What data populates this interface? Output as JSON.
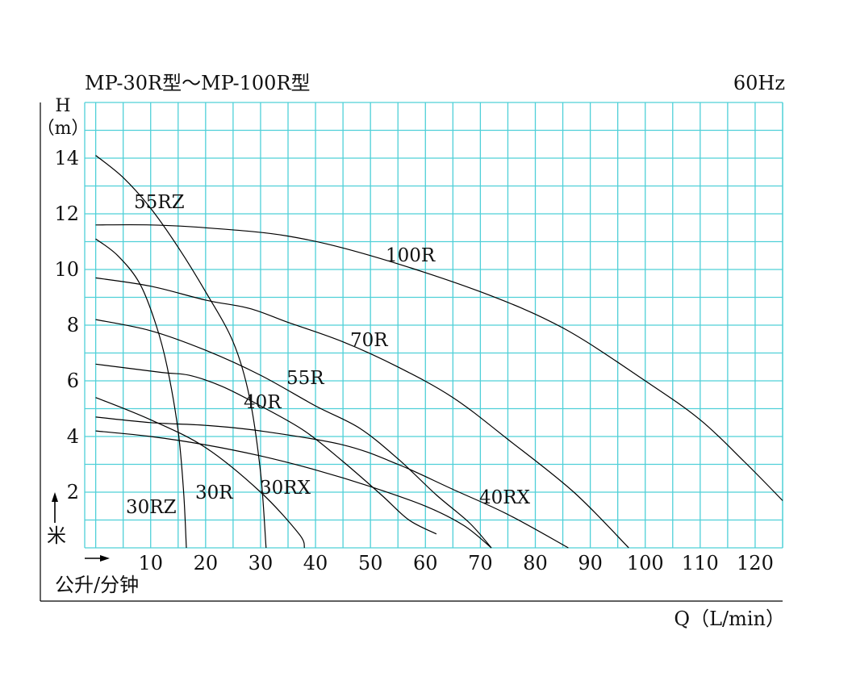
{
  "chart_data": {
    "type": "line",
    "title": "MP-30R型～MP-100R型",
    "frequency": "60Hz",
    "ylabel_top": "H",
    "ylabel_unit": "（m）",
    "ylabel_cn": "米",
    "xlabel_cn": "公升/分钟",
    "xlabel": "Q（L/min）",
    "xlim": [
      -2,
      125
    ],
    "ylim": [
      0,
      16
    ],
    "x_ticks": [
      10,
      20,
      30,
      40,
      50,
      60,
      70,
      80,
      90,
      100,
      110,
      120
    ],
    "y_ticks": [
      2,
      4,
      6,
      8,
      10,
      12,
      14
    ],
    "grid": true,
    "grid_color": "#4fd0d8",
    "line_color": "#000000",
    "series": [
      {
        "name": "100R",
        "points": [
          [
            0,
            11.6
          ],
          [
            10,
            11.6
          ],
          [
            20,
            11.5
          ],
          [
            35,
            11.2
          ],
          [
            50,
            10.5
          ],
          [
            70,
            9.2
          ],
          [
            85,
            7.9
          ],
          [
            100,
            6.0
          ],
          [
            110,
            4.6
          ],
          [
            118,
            3.1
          ],
          [
            125,
            1.7
          ]
        ]
      },
      {
        "name": "70R",
        "points": [
          [
            0,
            9.7
          ],
          [
            10,
            9.4
          ],
          [
            20,
            8.9
          ],
          [
            28,
            8.6
          ],
          [
            35,
            8.1
          ],
          [
            45,
            7.4
          ],
          [
            55,
            6.5
          ],
          [
            65,
            5.4
          ],
          [
            75,
            3.9
          ],
          [
            87,
            2.0
          ],
          [
            97,
            0
          ]
        ]
      },
      {
        "name": "55R",
        "points": [
          [
            0,
            8.2
          ],
          [
            10,
            7.8
          ],
          [
            20,
            7.1
          ],
          [
            30,
            6.2
          ],
          [
            40,
            5.1
          ],
          [
            48,
            4.3
          ],
          [
            55,
            3.2
          ],
          [
            62,
            1.9
          ],
          [
            68,
            0.9
          ],
          [
            72,
            0
          ]
        ]
      },
      {
        "name": "40R",
        "points": [
          [
            0,
            6.6
          ],
          [
            12,
            6.3
          ],
          [
            17,
            6.2
          ],
          [
            23,
            5.8
          ],
          [
            30,
            5.1
          ],
          [
            38,
            4.2
          ],
          [
            45,
            3.1
          ],
          [
            52,
            1.9
          ],
          [
            57,
            1.0
          ],
          [
            62,
            0.5
          ]
        ]
      },
      {
        "name": "30RX",
        "points": [
          [
            0,
            4.7
          ],
          [
            10,
            4.5
          ],
          [
            20,
            4.4
          ],
          [
            30,
            4.2
          ],
          [
            45,
            3.7
          ],
          [
            55,
            3.0
          ],
          [
            65,
            2.1
          ],
          [
            75,
            1.2
          ],
          [
            86,
            0
          ]
        ]
      },
      {
        "name": "40RX",
        "points": [
          [
            0,
            4.2
          ],
          [
            10,
            4.0
          ],
          [
            20,
            3.7
          ],
          [
            30,
            3.3
          ],
          [
            40,
            2.8
          ],
          [
            50,
            2.2
          ],
          [
            60,
            1.5
          ],
          [
            67,
            0.8
          ],
          [
            72,
            0
          ]
        ]
      },
      {
        "name": "30R",
        "points": [
          [
            0,
            5.4
          ],
          [
            10,
            4.6
          ],
          [
            20,
            3.6
          ],
          [
            30,
            2.0
          ],
          [
            37,
            0.5
          ],
          [
            38,
            0
          ]
        ]
      },
      {
        "name": "55RZ",
        "points": [
          [
            0,
            14.1
          ],
          [
            5,
            13.3
          ],
          [
            10,
            12.2
          ],
          [
            15,
            10.8
          ],
          [
            20,
            9.2
          ],
          [
            25,
            7.4
          ],
          [
            28,
            5.4
          ],
          [
            30,
            2.7
          ],
          [
            31,
            0
          ]
        ]
      },
      {
        "name": "30RZ",
        "points": [
          [
            0,
            11.1
          ],
          [
            4,
            10.5
          ],
          [
            8,
            9.5
          ],
          [
            11,
            8.0
          ],
          [
            13,
            6.5
          ],
          [
            15,
            4.2
          ],
          [
            16,
            2.0
          ],
          [
            16.5,
            0
          ]
        ]
      }
    ],
    "labels": {
      "100R": "100R",
      "70R": "70R",
      "55R": "55R",
      "40R": "40R",
      "30RX": "30RX",
      "40RX": "40RX",
      "30R": "30R",
      "55RZ": "55RZ",
      "30RZ": "30RZ"
    }
  }
}
